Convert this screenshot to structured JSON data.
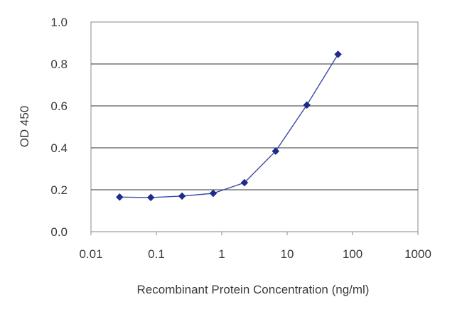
{
  "chart_data": {
    "type": "line",
    "title": "",
    "xlabel": "Recombinant Protein Concentration (ng/ml)",
    "ylabel": "OD 450",
    "xscale": "log",
    "xlim": [
      0.01,
      1000
    ],
    "ylim": [
      0.0,
      1.0
    ],
    "xticks": [
      0.01,
      0.1,
      1,
      10,
      100,
      1000
    ],
    "xtick_labels": [
      "0.01",
      "0.1",
      "1",
      "10",
      "100",
      "1000"
    ],
    "yticks": [
      0.0,
      0.2,
      0.4,
      0.6,
      0.8,
      1.0
    ],
    "ytick_labels": [
      "0.0",
      "0.2",
      "0.4",
      "0.6",
      "0.8",
      "1.0"
    ],
    "grid": "horizontal",
    "series": [
      {
        "color": "#1f2a8a",
        "marker": "diamond",
        "x": [
          0.0274,
          0.0823,
          0.247,
          0.741,
          2.22,
          6.67,
          20,
          60
        ],
        "y": [
          0.165,
          0.163,
          0.17,
          0.183,
          0.234,
          0.384,
          0.604,
          0.846
        ]
      }
    ]
  }
}
